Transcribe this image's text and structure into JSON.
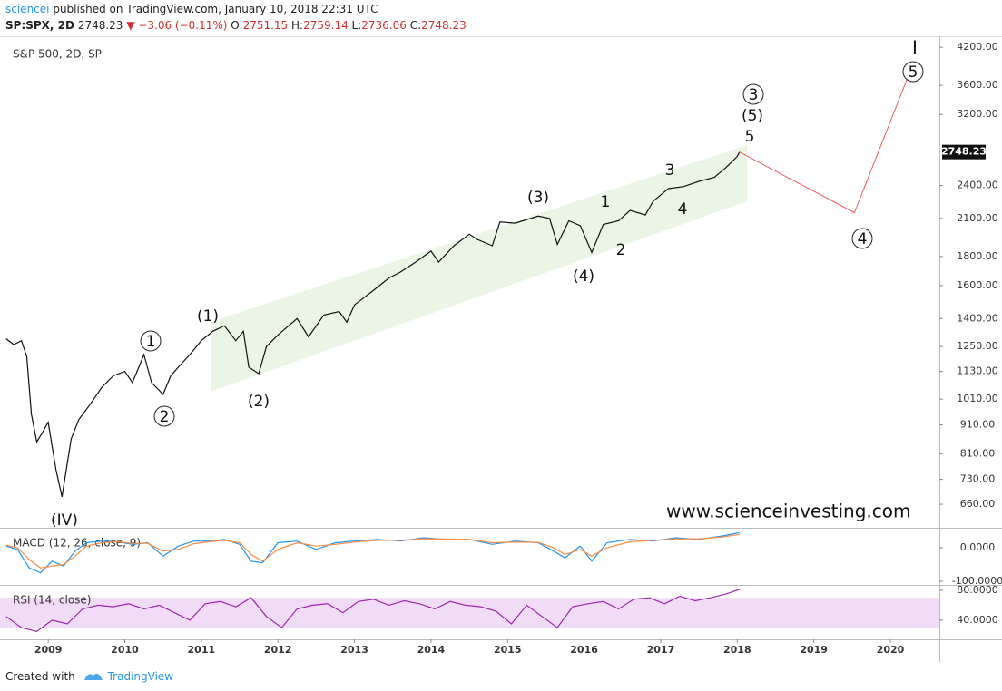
{
  "header": {
    "author": "sciencei",
    "published": "published on TradingView.com, January 10, 2018 22:31 UTC",
    "symbol": "SP:SPX, 2D",
    "price": "2748.23",
    "change": "−3.06 (−0.11%)",
    "ohlc": [
      {
        "label": "O:",
        "value": "2751.15"
      },
      {
        "label": "H:",
        "value": "2759.14"
      },
      {
        "label": "L:",
        "value": "2736.06"
      },
      {
        "label": "C:",
        "value": "2748.23"
      }
    ]
  },
  "watermark": "www.scienceinvesting.com",
  "footer": {
    "text": "Created with",
    "brand": "TradingView"
  },
  "chart_data": [
    {
      "type": "line",
      "title": "S&P 500, 2D, SP",
      "log_scale": true,
      "xlim": [
        2008.37,
        2020.64
      ],
      "ylim": [
        600,
        4360
      ],
      "yticks": [
        {
          "value": 4200,
          "label": "4200.00"
        },
        {
          "value": 3600,
          "label": "3600.00"
        },
        {
          "value": 3200,
          "label": "3200.00"
        },
        {
          "value": 2400,
          "label": "2400.00"
        },
        {
          "value": 2100,
          "label": "2100.00"
        },
        {
          "value": 1800,
          "label": "1800.00"
        },
        {
          "value": 1600,
          "label": "1600.00"
        },
        {
          "value": 1400,
          "label": "1400.00"
        },
        {
          "value": 1250,
          "label": "1250.00"
        },
        {
          "value": 1130,
          "label": "1130.00"
        },
        {
          "value": 1010,
          "label": "1010.00"
        },
        {
          "value": 910,
          "label": "910.00"
        },
        {
          "value": 810,
          "label": "810.00"
        },
        {
          "value": 730,
          "label": "730.00"
        },
        {
          "value": 660,
          "label": "660.00"
        }
      ],
      "last_price": 2748.23,
      "x": [
        2008.45,
        2008.55,
        2008.65,
        2008.72,
        2008.78,
        2008.85,
        2008.92,
        2009.0,
        2009.1,
        2009.18,
        2009.3,
        2009.4,
        2009.55,
        2009.7,
        2009.85,
        2010.0,
        2010.1,
        2010.25,
        2010.35,
        2010.5,
        2010.6,
        2010.7,
        2010.85,
        2011.0,
        2011.15,
        2011.3,
        2011.45,
        2011.55,
        2011.62,
        2011.75,
        2011.85,
        2012.0,
        2012.25,
        2012.4,
        2012.6,
        2012.8,
        2012.9,
        2013.0,
        2013.25,
        2013.45,
        2013.6,
        2013.8,
        2014.0,
        2014.1,
        2014.3,
        2014.5,
        2014.6,
        2014.8,
        2014.9,
        2015.1,
        2015.4,
        2015.55,
        2015.65,
        2015.8,
        2015.95,
        2016.1,
        2016.25,
        2016.45,
        2016.6,
        2016.8,
        2016.9,
        2017.1,
        2017.3,
        2017.5,
        2017.7,
        2017.85,
        2018.0,
        2018.03
      ],
      "series": [
        {
          "color": "#111111",
          "values": [
            1290,
            1260,
            1280,
            1200,
            950,
            850,
            880,
            920,
            760,
            680,
            860,
            930,
            990,
            1060,
            1110,
            1130,
            1080,
            1210,
            1080,
            1030,
            1110,
            1150,
            1210,
            1280,
            1330,
            1360,
            1280,
            1330,
            1150,
            1120,
            1250,
            1310,
            1400,
            1300,
            1420,
            1440,
            1380,
            1480,
            1570,
            1650,
            1690,
            1760,
            1840,
            1760,
            1880,
            1970,
            1930,
            1880,
            2070,
            2060,
            2120,
            2100,
            1890,
            2080,
            2040,
            1830,
            2050,
            2080,
            2170,
            2130,
            2250,
            2370,
            2390,
            2440,
            2480,
            2580,
            2700,
            2748.23
          ]
        }
      ],
      "projection": {
        "color": "#f05a5a",
        "x": [
          2018.03,
          2019.53,
          2020.22
        ],
        "values": [
          2748.23,
          2150,
          3700
        ]
      },
      "annotations": [
        {
          "text": "1",
          "circled": true
        },
        {
          "text": "2",
          "circled": true
        },
        {
          "text": "(1)",
          "circled": false
        },
        {
          "text": "(2)",
          "circled": false
        },
        {
          "text": "(IV)",
          "circled": false
        },
        {
          "text": "(3)",
          "circled": false
        },
        {
          "text": "1",
          "circled": false
        },
        {
          "text": "2",
          "circled": false
        },
        {
          "text": "(4)",
          "circled": false
        },
        {
          "text": "3",
          "circled": false
        },
        {
          "text": "4",
          "circled": false
        },
        {
          "text": "5",
          "circled": false
        },
        {
          "text": "(5)",
          "circled": false
        },
        {
          "text": "3",
          "circled": true
        },
        {
          "text": "I",
          "circled": false
        },
        {
          "text": "5",
          "circled": true
        },
        {
          "text": "4",
          "circled": true
        }
      ]
    },
    {
      "type": "line",
      "title": "MACD (12, 26, close, 9)",
      "xlim": [
        2008.37,
        2020.64
      ],
      "ylim": [
        -111,
        57
      ],
      "yticks": [
        {
          "value": 0,
          "label": "0.0000"
        },
        {
          "value": -100,
          "label": "-100.0000"
        }
      ],
      "x": [
        2008.45,
        2008.6,
        2008.75,
        2008.9,
        2009.05,
        2009.2,
        2009.35,
        2009.5,
        2009.7,
        2009.9,
        2010.1,
        2010.3,
        2010.5,
        2010.7,
        2010.9,
        2011.1,
        2011.3,
        2011.5,
        2011.65,
        2011.8,
        2012.0,
        2012.25,
        2012.5,
        2012.75,
        2013.0,
        2013.3,
        2013.6,
        2013.9,
        2014.2,
        2014.5,
        2014.8,
        2015.1,
        2015.4,
        2015.6,
        2015.75,
        2015.95,
        2016.1,
        2016.3,
        2016.6,
        2016.9,
        2017.2,
        2017.5,
        2017.8,
        2018.03
      ],
      "series": [
        {
          "color": "#2196f3",
          "values": [
            5,
            -5,
            -60,
            -75,
            -40,
            -55,
            -10,
            15,
            20,
            18,
            10,
            15,
            -25,
            5,
            20,
            20,
            25,
            10,
            -40,
            -45,
            15,
            20,
            -5,
            15,
            20,
            25,
            20,
            30,
            25,
            25,
            10,
            20,
            15,
            -10,
            -30,
            5,
            -40,
            15,
            25,
            20,
            30,
            25,
            35,
            45
          ]
        },
        {
          "color": "#ff8a3d",
          "values": [
            8,
            0,
            -35,
            -60,
            -55,
            -50,
            -25,
            5,
            15,
            18,
            13,
            13,
            -10,
            -5,
            12,
            18,
            22,
            15,
            -20,
            -40,
            -5,
            15,
            5,
            10,
            17,
            22,
            22,
            27,
            26,
            25,
            15,
            17,
            16,
            0,
            -20,
            -5,
            -25,
            0,
            18,
            22,
            26,
            27,
            32,
            40
          ]
        }
      ]
    },
    {
      "type": "line",
      "title": "RSI (14, close)",
      "xlim": [
        2008.37,
        2020.64
      ],
      "ylim": [
        14.4,
        86
      ],
      "band": [
        30,
        70
      ],
      "band_color": "#f1dcf7",
      "yticks": [
        {
          "value": 80,
          "label": "80.0000"
        },
        {
          "value": 40,
          "label": "40.0000"
        }
      ],
      "xticks": [
        2009,
        2010,
        2011,
        2012,
        2013,
        2014,
        2015,
        2016,
        2017,
        2018,
        2019,
        2020
      ],
      "x": [
        2008.45,
        2008.65,
        2008.85,
        2009.05,
        2009.25,
        2009.45,
        2009.65,
        2009.85,
        2010.05,
        2010.25,
        2010.45,
        2010.65,
        2010.85,
        2011.05,
        2011.25,
        2011.45,
        2011.65,
        2011.85,
        2012.05,
        2012.25,
        2012.45,
        2012.65,
        2012.85,
        2013.05,
        2013.25,
        2013.45,
        2013.65,
        2013.85,
        2014.05,
        2014.25,
        2014.45,
        2014.65,
        2014.85,
        2015.05,
        2015.25,
        2015.45,
        2015.65,
        2015.85,
        2016.05,
        2016.25,
        2016.45,
        2016.65,
        2016.85,
        2017.05,
        2017.25,
        2017.45,
        2017.65,
        2017.85,
        2018.05
      ],
      "series": [
        {
          "color": "#9c27b0",
          "values": [
            45,
            30,
            25,
            40,
            35,
            55,
            60,
            58,
            62,
            55,
            60,
            50,
            40,
            62,
            65,
            58,
            70,
            45,
            30,
            55,
            60,
            62,
            50,
            65,
            68,
            60,
            66,
            62,
            55,
            65,
            60,
            58,
            52,
            35,
            60,
            45,
            30,
            58,
            62,
            65,
            55,
            68,
            70,
            62,
            72,
            66,
            70,
            75,
            82
          ]
        }
      ]
    }
  ]
}
